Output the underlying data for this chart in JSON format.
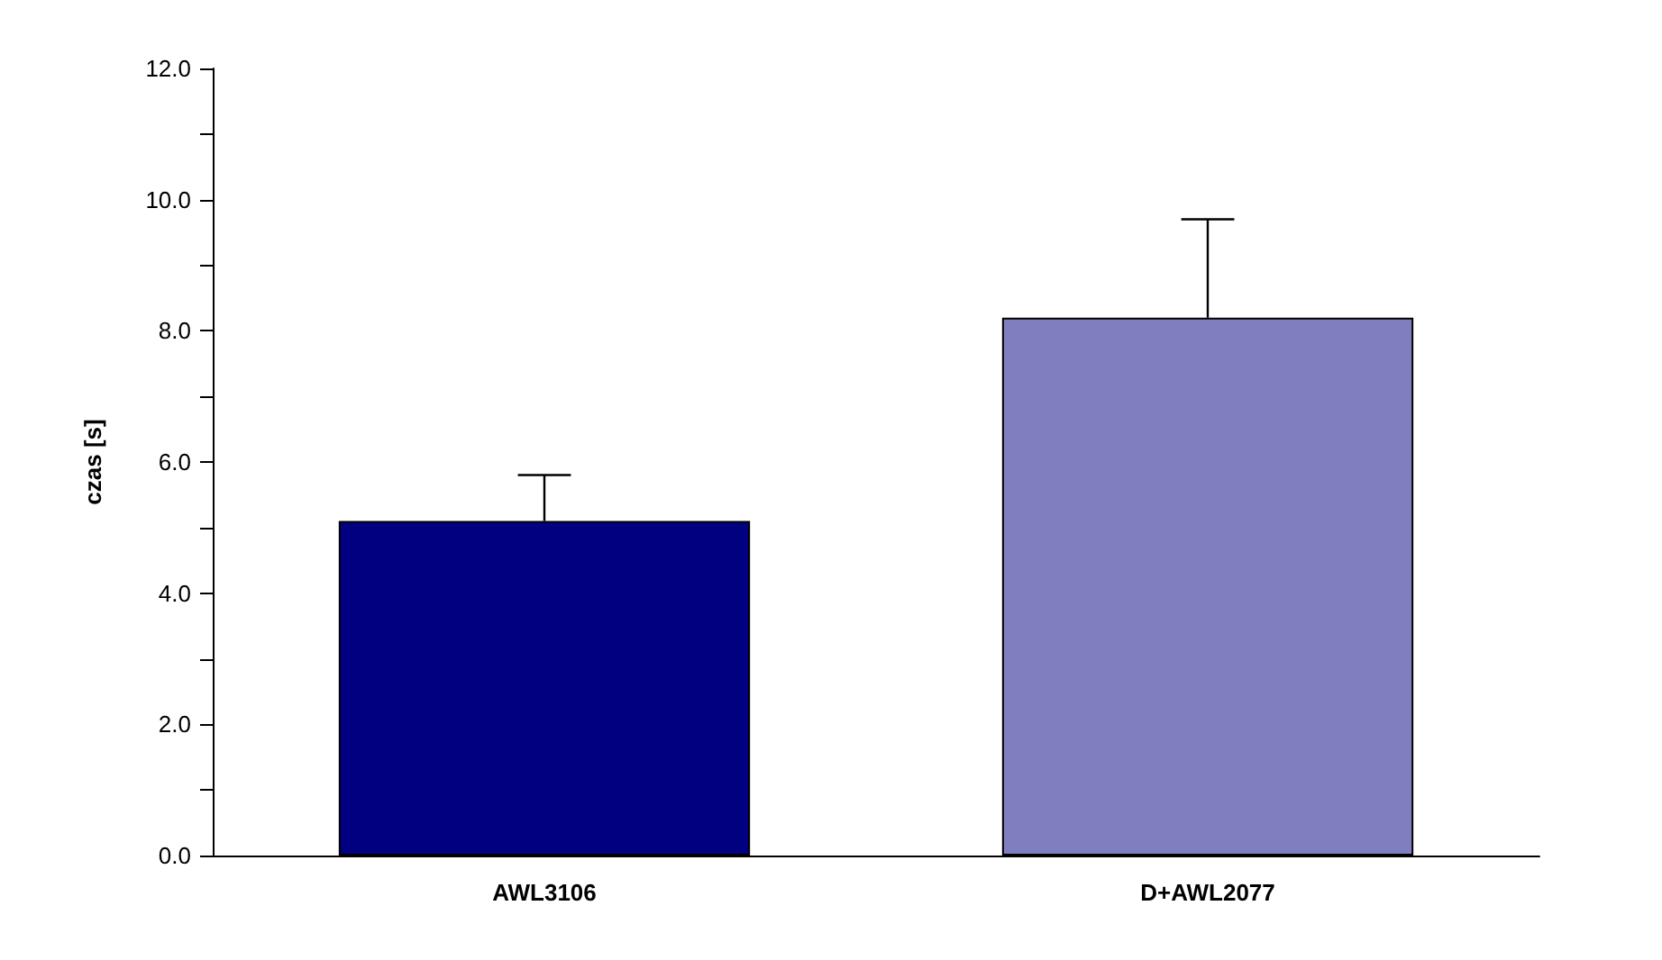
{
  "chart_data": {
    "type": "bar",
    "ylabel": "czas [s]",
    "categories": [
      "AWL3106",
      "D+AWL2077"
    ],
    "values": [
      5.1,
      8.2
    ],
    "colors": [
      "#000080",
      "#7f7fbf"
    ],
    "errors": [
      [
        5.1,
        5.8
      ],
      [
        8.2,
        9.7
      ]
    ],
    "ylim": [
      0,
      12
    ],
    "yticks": [
      {
        "value": 0,
        "label": "0.0"
      },
      {
        "value": 1,
        "label": null
      },
      {
        "value": 2,
        "label": "2.0"
      },
      {
        "value": 3,
        "label": null
      },
      {
        "value": 4,
        "label": "4.0"
      },
      {
        "value": 5,
        "label": null
      },
      {
        "value": 6,
        "label": "6.0"
      },
      {
        "value": 7,
        "label": null
      },
      {
        "value": 8,
        "label": "8.0"
      },
      {
        "value": 9,
        "label": null
      },
      {
        "value": 10,
        "label": "10.0"
      },
      {
        "value": 11,
        "label": null
      },
      {
        "value": 12,
        "label": "12.0"
      }
    ],
    "grid": false
  }
}
